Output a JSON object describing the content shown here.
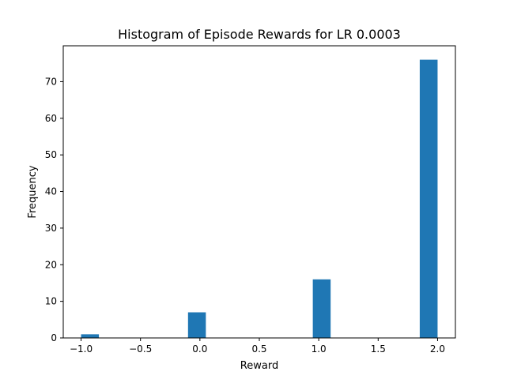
{
  "chart_data": {
    "type": "bar",
    "title": "Histogram of Episode Rewards for LR 0.0003",
    "xlabel": "Reward",
    "ylabel": "Frequency",
    "xlim": [
      -1.15,
      2.15
    ],
    "ylim": [
      0,
      79.8
    ],
    "bin_width": 0.15,
    "bars": [
      {
        "x_start": -1.0,
        "value": 1
      },
      {
        "x_start": -0.1,
        "value": 7
      },
      {
        "x_start": 0.95,
        "value": 16
      },
      {
        "x_start": 1.85,
        "value": 76
      }
    ],
    "x_ticks": [
      {
        "value": -1.0,
        "label": "−1.0"
      },
      {
        "value": -0.5,
        "label": "−0.5"
      },
      {
        "value": 0.0,
        "label": "0.0"
      },
      {
        "value": 0.5,
        "label": "0.5"
      },
      {
        "value": 1.0,
        "label": "1.0"
      },
      {
        "value": 1.5,
        "label": "1.5"
      },
      {
        "value": 2.0,
        "label": "2.0"
      }
    ],
    "y_ticks": [
      {
        "value": 0,
        "label": "0"
      },
      {
        "value": 10,
        "label": "10"
      },
      {
        "value": 20,
        "label": "20"
      },
      {
        "value": 30,
        "label": "30"
      },
      {
        "value": 40,
        "label": "40"
      },
      {
        "value": 50,
        "label": "50"
      },
      {
        "value": 60,
        "label": "60"
      },
      {
        "value": 70,
        "label": "70"
      }
    ],
    "bar_color": "#1f77b4",
    "grid": false,
    "legend": "none"
  }
}
